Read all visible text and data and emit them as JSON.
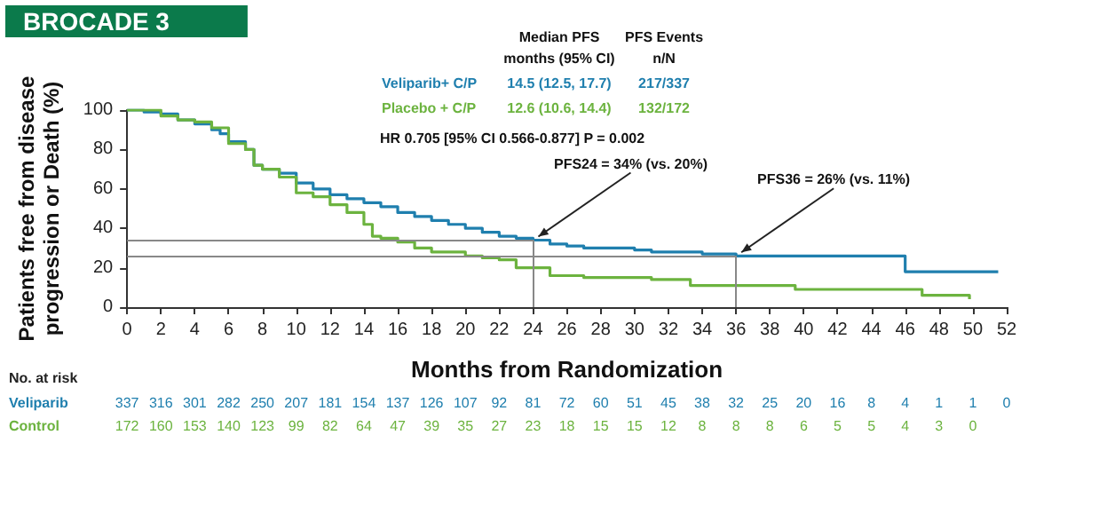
{
  "chart_data": {
    "type": "step",
    "title": "BROCADE 3",
    "xlabel": "Months from Randomization",
    "ylabel": "Patients free from disease\nprogression or Death (%)",
    "xlim": [
      0,
      52
    ],
    "xticks": [
      0,
      2,
      4,
      6,
      8,
      10,
      12,
      14,
      16,
      18,
      20,
      22,
      24,
      26,
      28,
      30,
      32,
      34,
      36,
      38,
      40,
      42,
      44,
      46,
      48,
      50,
      52
    ],
    "ylim": [
      0,
      100
    ],
    "yticks": [
      0,
      20,
      40,
      60,
      80,
      100
    ],
    "grid": false,
    "series": [
      {
        "name": "Veliparib+ C/P",
        "color": "#1f7fae",
        "x": [
          0,
          1,
          2,
          3,
          4,
          5,
          5.5,
          6,
          7,
          7.5,
          8,
          9,
          10,
          11,
          12,
          13,
          14,
          15,
          16,
          17,
          18,
          19,
          20,
          21,
          22,
          23,
          24,
          25,
          26,
          27,
          28,
          30,
          31,
          33,
          34,
          35,
          36,
          40,
          43,
          46,
          51.5
        ],
        "values": [
          100,
          99,
          98,
          95,
          93,
          90,
          88,
          84,
          80,
          72,
          70,
          68,
          63,
          60,
          57,
          55,
          53,
          51,
          48,
          46,
          44,
          42,
          40,
          38,
          36,
          35,
          34,
          32,
          31,
          30,
          30,
          29,
          28,
          28,
          27,
          27,
          26,
          26,
          26,
          18,
          18
        ]
      },
      {
        "name": "Placebo + C/P",
        "color": "#6cb33f",
        "x": [
          0,
          2,
          3,
          4,
          5,
          6,
          7,
          7.5,
          8,
          9,
          10,
          11,
          12,
          13,
          14,
          14.5,
          15,
          16,
          17,
          18,
          20,
          21,
          22,
          23,
          25,
          27,
          31,
          33.3,
          39.5,
          47,
          49.8
        ],
        "values": [
          100,
          97,
          95,
          94,
          91,
          83,
          80,
          72,
          70,
          66,
          58,
          56,
          52,
          48,
          42,
          36,
          35,
          33,
          30,
          28,
          26,
          25,
          24,
          20,
          16,
          15,
          14,
          11,
          9,
          6,
          4
        ]
      }
    ],
    "ref_lines": [
      {
        "axis": "y",
        "value": 34,
        "color": "#888888"
      },
      {
        "axis": "y",
        "value": 26,
        "color": "#888888"
      },
      {
        "axis": "x",
        "value": 24,
        "color": "#888888"
      },
      {
        "axis": "x",
        "value": 36,
        "color": "#888888"
      }
    ],
    "annotations": [
      "Median PFS\nmonths (95% CI)",
      "PFS Events\nn/N",
      "14.5 (12.5, 17.7)",
      "217/337",
      "12.6 (10.6, 14.4)",
      "132/172",
      "HR 0.705 [95% CI 0.566-0.877] P = 0.002",
      {
        "text": "PFS24 = 34% (vs. 20%)",
        "x": 24,
        "y": 34
      },
      {
        "text": "PFS36 = 26% (vs. 11%)",
        "x": 36,
        "y": 26
      },
      "No. at risk",
      "Veliparib 337 316 301 282 250 207 181 154 137 126 107 92 81 72 60 51 45 38 32 25 20 16 8 4 1 1 0",
      "Control 172 160 153 140 123 99 82 64 47 39 35 27 23 18 15 15 12 8 8 8 6 5 5 4 3 0"
    ]
  }
}
